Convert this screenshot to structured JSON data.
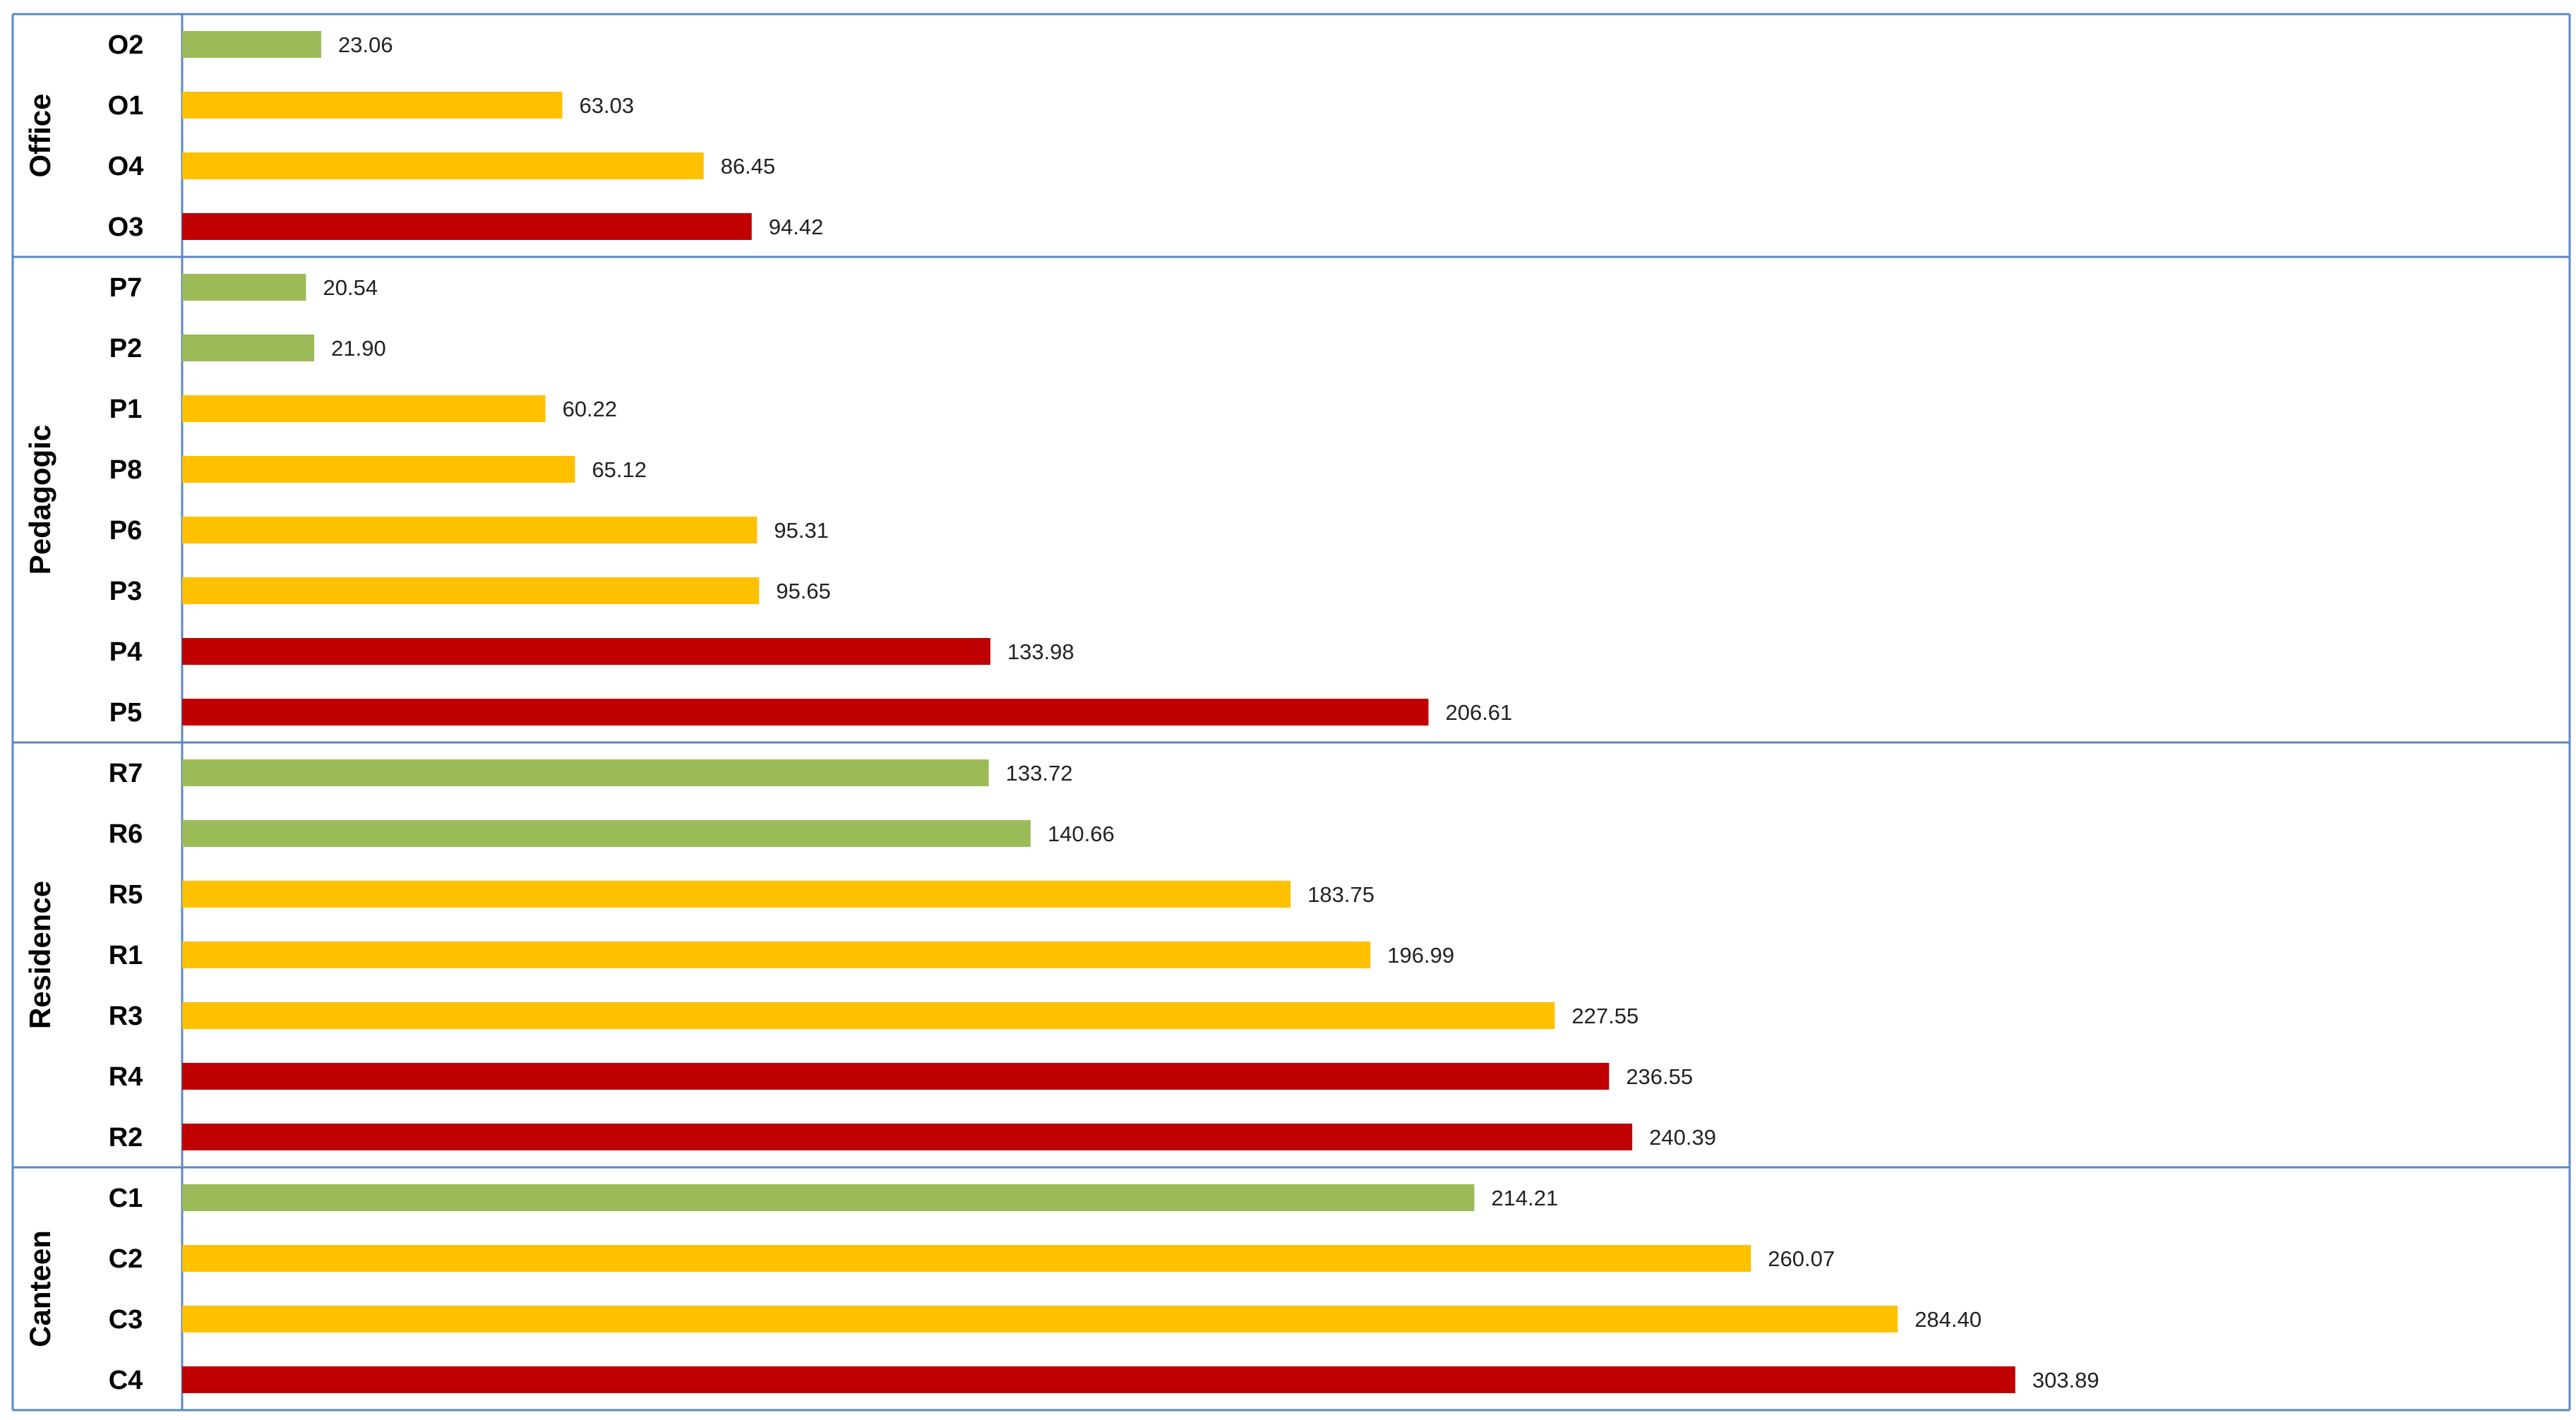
{
  "chart_data": {
    "type": "bar",
    "orientation": "horizontal",
    "xlim": [
      0,
      303.89
    ],
    "grid": false,
    "legend": "none",
    "colors": {
      "green": "#9bbb59",
      "yellow": "#ffc000",
      "red": "#c00000",
      "frame": "#5b87c5"
    },
    "groups": [
      {
        "name": "Office",
        "items": [
          {
            "label": "O2",
            "value": 23.06,
            "display": "23.06",
            "color": "green"
          },
          {
            "label": "O1",
            "value": 63.03,
            "display": "63.03",
            "color": "yellow"
          },
          {
            "label": "O4",
            "value": 86.45,
            "display": "86.45",
            "color": "yellow"
          },
          {
            "label": "O3",
            "value": 94.42,
            "display": "94.42",
            "color": "red"
          }
        ]
      },
      {
        "name": "Pedagogic",
        "items": [
          {
            "label": "P7",
            "value": 20.54,
            "display": "20.54",
            "color": "green"
          },
          {
            "label": "P2",
            "value": 21.9,
            "display": "21.90",
            "color": "green"
          },
          {
            "label": "P1",
            "value": 60.22,
            "display": "60.22",
            "color": "yellow"
          },
          {
            "label": "P8",
            "value": 65.12,
            "display": "65.12",
            "color": "yellow"
          },
          {
            "label": "P6",
            "value": 95.31,
            "display": "95.31",
            "color": "yellow"
          },
          {
            "label": "P3",
            "value": 95.65,
            "display": "95.65",
            "color": "yellow"
          },
          {
            "label": "P4",
            "value": 133.98,
            "display": "133.98",
            "color": "red"
          },
          {
            "label": "P5",
            "value": 206.61,
            "display": "206.61",
            "color": "red"
          }
        ]
      },
      {
        "name": "Residence",
        "items": [
          {
            "label": "R7",
            "value": 133.72,
            "display": "133.72",
            "color": "green"
          },
          {
            "label": "R6",
            "value": 140.66,
            "display": "140.66",
            "color": "green"
          },
          {
            "label": "R5",
            "value": 183.75,
            "display": "183.75",
            "color": "yellow"
          },
          {
            "label": "R1",
            "value": 196.99,
            "display": "196.99",
            "color": "yellow"
          },
          {
            "label": "R3",
            "value": 227.55,
            "display": "227.55",
            "color": "yellow"
          },
          {
            "label": "R4",
            "value": 236.55,
            "display": "236.55",
            "color": "red"
          },
          {
            "label": "R2",
            "value": 240.39,
            "display": "240.39",
            "color": "red"
          }
        ]
      },
      {
        "name": "Canteen",
        "items": [
          {
            "label": "C1",
            "value": 214.21,
            "display": "214.21",
            "color": "green"
          },
          {
            "label": "C2",
            "value": 260.07,
            "display": "260.07",
            "color": "yellow"
          },
          {
            "label": "C3",
            "value": 284.4,
            "display": "284.40",
            "color": "yellow"
          },
          {
            "label": "C4",
            "value": 303.89,
            "display": "303.89",
            "color": "red"
          }
        ]
      }
    ]
  }
}
